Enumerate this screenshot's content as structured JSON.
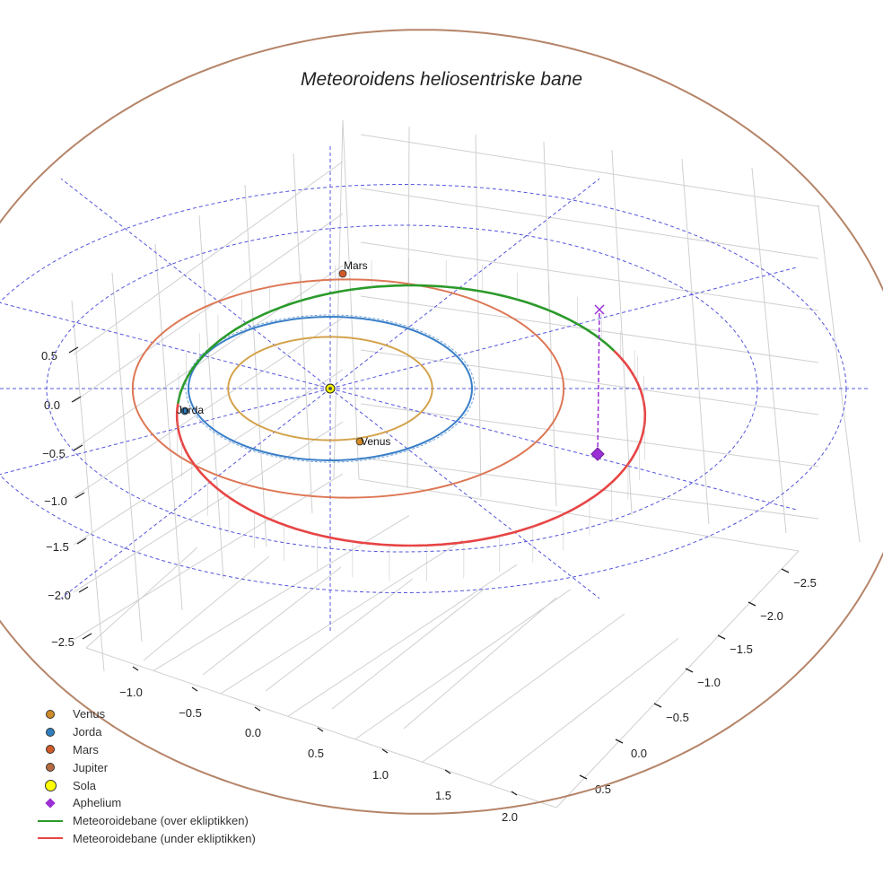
{
  "title": "Meteoroidens heliosentriske bane",
  "colors": {
    "grid": "#d0d0d0",
    "ecliptic_guides": "#5555dd",
    "venus_orbit": "#d4a24c",
    "earth_orbit": "#3a7fc8",
    "mars_orbit": "#dd7755",
    "jupiter_orbit": "#b58468",
    "meteoroid_above": "#2a9a2a",
    "meteoroid_below": "#e84444",
    "aphelion": "#9b30d6",
    "sun": "#ffff00"
  },
  "chart_data": {
    "type": "line-3d",
    "projection": "3d-perspective",
    "x_ticks": [
      "−1.0",
      "−0.5",
      "0.0",
      "0.5",
      "1.0",
      "1.5",
      "2.0"
    ],
    "y_ticks": [
      "−2.5",
      "−2.0",
      "−1.5",
      "−1.0",
      "−0.5",
      "0.0",
      "0.5"
    ],
    "z_ticks": [
      "0.5",
      "0.0",
      "−0.5",
      "−1.0",
      "−1.5",
      "−2.0",
      "−2.5"
    ],
    "planets": [
      {
        "name": "Venus",
        "label": "Venus",
        "orbit_radius_au": 0.72
      },
      {
        "name": "Jorda",
        "label": "Jorda",
        "orbit_radius_au": 1.0
      },
      {
        "name": "Mars",
        "label": "Mars",
        "orbit_radius_au": 1.52
      },
      {
        "name": "Jupiter",
        "label": "",
        "orbit_radius_au": 5.2
      }
    ],
    "sun": {
      "name": "Sola"
    },
    "meteoroid_orbit": {
      "perihelion_au": 0.96,
      "aphelion_au": 2.3,
      "above_name": "Meteoroidebane (over ekliptikken)",
      "below_name": "Meteoroidebane (under ekliptikken)"
    },
    "aphelion": {
      "name": "Aphelium"
    },
    "guide_rings_au": [
      2.0,
      2.5
    ]
  },
  "legend": [
    {
      "label": "Venus",
      "marker": "dot",
      "color": "#d08a28"
    },
    {
      "label": "Jorda",
      "marker": "dot",
      "color": "#2f7fc0"
    },
    {
      "label": "Mars",
      "marker": "dot",
      "color": "#d05a28"
    },
    {
      "label": "Jupiter",
      "marker": "dot",
      "color": "#b86a40"
    },
    {
      "label": "Sola",
      "marker": "bigdot",
      "color": "#ffff00"
    },
    {
      "label": "Aphelium",
      "marker": "diamond",
      "color": "#9b30d6"
    },
    {
      "label": "Meteoroidebane (over ekliptikken)",
      "marker": "line",
      "color": "#2a9a2a"
    },
    {
      "label": "Meteoroidebane (under ekliptikken)",
      "marker": "line",
      "color": "#e84444"
    }
  ]
}
